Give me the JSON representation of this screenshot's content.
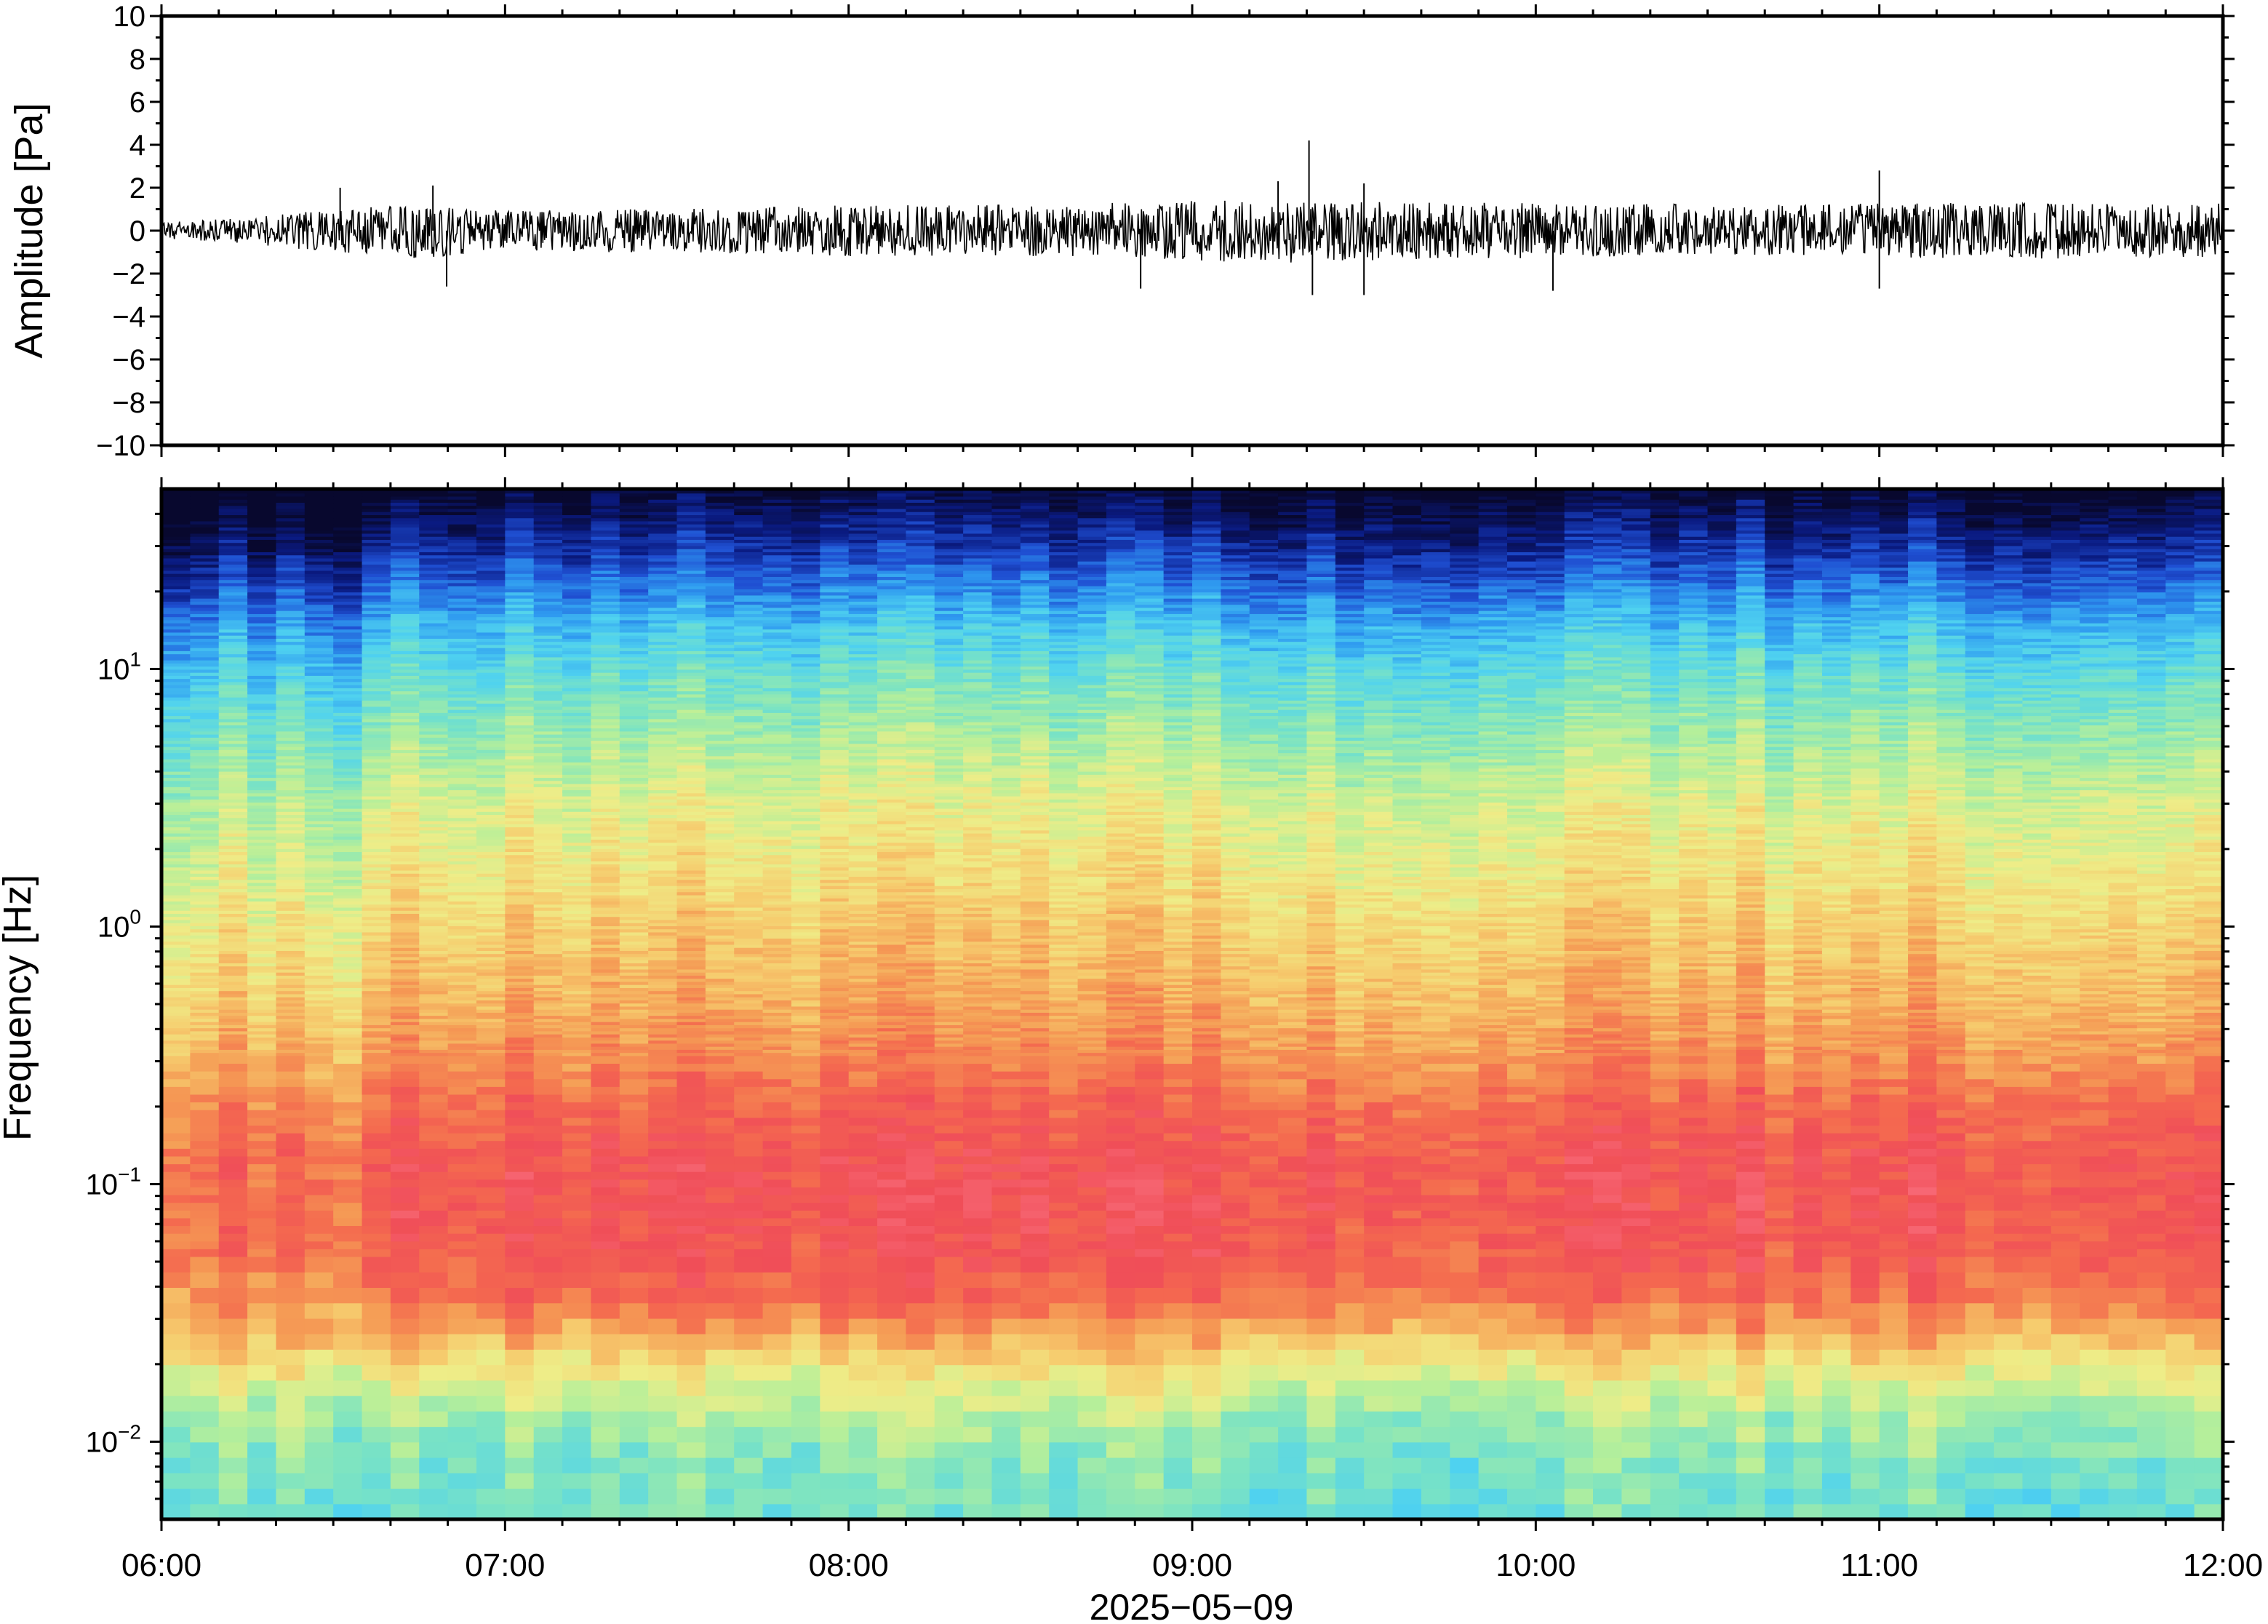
{
  "chart_data": [
    {
      "type": "line",
      "panel": "waveform",
      "ylabel": "Amplitude [Pa]",
      "ylim": [
        -10,
        10
      ],
      "yticks": [
        10,
        8,
        6,
        4,
        2,
        0,
        -2,
        -4,
        -6,
        -8,
        -10
      ],
      "ytick_labels": [
        "10",
        "8",
        "6",
        "4",
        "2",
        "0",
        "−2",
        "−4",
        "−6",
        "−8",
        "−10"
      ],
      "xlim_hours": [
        6,
        12
      ],
      "trace_color": "#000000",
      "envelope": {
        "time_hours": [
          6.0,
          6.25,
          6.5,
          6.75,
          7.0,
          7.25,
          7.5,
          7.75,
          8.0,
          8.25,
          8.5,
          8.75,
          9.0,
          9.25,
          9.5,
          9.75,
          10.0,
          10.25,
          10.5,
          10.75,
          11.0,
          11.25,
          11.5,
          11.75,
          12.0
        ],
        "half_width_pa": [
          0.4,
          0.6,
          1.0,
          1.3,
          0.9,
          1.0,
          1.0,
          1.1,
          1.2,
          1.2,
          1.2,
          1.3,
          1.4,
          1.5,
          1.4,
          1.3,
          1.3,
          1.3,
          1.2,
          1.2,
          1.3,
          1.3,
          1.3,
          1.3,
          1.3
        ]
      },
      "peaks": [
        {
          "time_hours": 6.52,
          "value": 2.0
        },
        {
          "time_hours": 6.79,
          "value": 2.1
        },
        {
          "time_hours": 6.83,
          "value": -2.6
        },
        {
          "time_hours": 8.85,
          "value": -2.7
        },
        {
          "time_hours": 9.25,
          "value": 2.3
        },
        {
          "time_hours": 9.34,
          "value": 4.2
        },
        {
          "time_hours": 9.35,
          "value": -3.0
        },
        {
          "time_hours": 9.5,
          "value": 2.2
        },
        {
          "time_hours": 9.5,
          "value": -3.0
        },
        {
          "time_hours": 11.0,
          "value": -2.7
        },
        {
          "time_hours": 11.0,
          "value": 2.8
        },
        {
          "time_hours": 10.05,
          "value": -2.8
        }
      ]
    },
    {
      "type": "heatmap",
      "panel": "spectrogram",
      "ylabel": "Frequency [Hz]",
      "yscale": "log",
      "ylim_hz": [
        0.005,
        50
      ],
      "yticks_hz": [
        10,
        1,
        0.1,
        0.01
      ],
      "ytick_labels": [
        {
          "base": "10",
          "exp": "1"
        },
        {
          "base": "10",
          "exp": "0"
        },
        {
          "base": "10",
          "exp": "−1"
        },
        {
          "base": "10",
          "exp": "−2"
        }
      ],
      "xlim_hours": [
        6,
        12
      ],
      "colormap": [
        "#08082e",
        "#0a1a80",
        "#1f4fd2",
        "#2f9af0",
        "#4fd2f0",
        "#7ae3c4",
        "#b6ef9a",
        "#eeed88",
        "#f6cc6e",
        "#f59c55",
        "#f46a4f",
        "#f04e58",
        "#f86b78"
      ],
      "value_range": [
        0,
        1
      ],
      "relative_level_profile": {
        "freq_hz": [
          50,
          40,
          30,
          22,
          15,
          10,
          6,
          3,
          1.5,
          0.8,
          0.5,
          0.3,
          0.2,
          0.12,
          0.08,
          0.05,
          0.035,
          0.025,
          0.018,
          0.012,
          0.008,
          0.005
        ],
        "level": [
          0.0,
          0.05,
          0.12,
          0.2,
          0.3,
          0.38,
          0.46,
          0.56,
          0.62,
          0.68,
          0.72,
          0.78,
          0.85,
          0.9,
          0.9,
          0.88,
          0.82,
          0.7,
          0.58,
          0.48,
          0.42,
          0.4
        ]
      }
    }
  ],
  "x_axis": {
    "tick_hours": [
      6,
      7,
      8,
      9,
      10,
      11,
      12
    ],
    "tick_labels": [
      "06:00",
      "07:00",
      "08:00",
      "09:00",
      "10:00",
      "11:00",
      "12:00"
    ],
    "date_label": "2025−05−09"
  }
}
